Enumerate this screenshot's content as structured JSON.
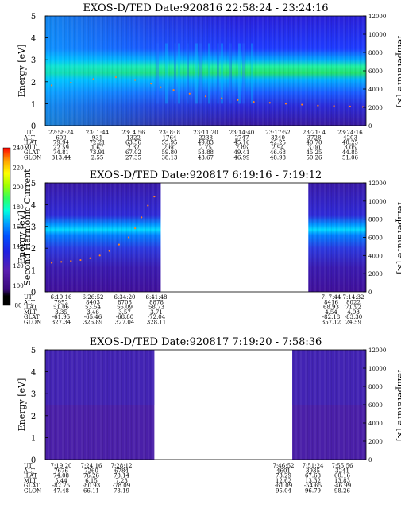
{
  "colorbar": {
    "label": "Second Harmonic Current",
    "ticks": [
      "80",
      "100",
      "120",
      "140",
      "160",
      "180",
      "200",
      "220",
      "240"
    ],
    "colors": [
      "#000000",
      "#3a0a7a",
      "#5a1fb0",
      "#2020e0",
      "#0050ff",
      "#00a0ff",
      "#00ffe0",
      "#30ff60",
      "#a0ff00",
      "#ffff00",
      "#ffa000",
      "#ff2000",
      "#ff0000"
    ]
  },
  "chart_data": [
    {
      "type": "heatmap",
      "title": "EXOS-D/TED   Date:920816  22:58:24 - 23:24:16",
      "ylabel": "Energy [eV]",
      "y2label": "Temperature [K]",
      "ylim": [
        0,
        5
      ],
      "y2lim": [
        0,
        12000
      ],
      "yticks": [
        "0",
        "1",
        "2",
        "3",
        "4",
        "5"
      ],
      "y2ticks": [
        "0",
        "2000",
        "4000",
        "6000",
        "8000",
        "10000",
        "12000"
      ],
      "segments": [
        [
          0,
          1
        ]
      ],
      "series": [
        {
          "name": "temperature",
          "x": [
            0.02,
            0.08,
            0.15,
            0.22,
            0.28,
            0.33,
            0.36,
            0.4,
            0.45,
            0.5,
            0.55,
            0.6,
            0.65,
            0.7,
            0.75,
            0.8,
            0.85,
            0.9,
            0.95,
            0.99
          ],
          "values": [
            4400,
            4700,
            5100,
            5300,
            5000,
            4600,
            4200,
            3900,
            3500,
            3200,
            3000,
            2800,
            2600,
            2500,
            2400,
            2300,
            2200,
            2150,
            2100,
            2050
          ]
        }
      ],
      "rows": [
        {
          "label": "UT",
          "values": [
            "22:58:24",
            "23: 1:44",
            "23: 4:56",
            "23: 8: 8",
            "23:11:20",
            "23:14:40",
            "23:17:52",
            "23:21: 4",
            "23:24:16"
          ]
        },
        {
          "label": "ALT",
          "values": [
            "602",
            "931",
            "1322",
            "1764",
            "2238",
            "2747",
            "3240",
            "3728",
            "4203"
          ]
        },
        {
          "label": "ILAT",
          "values": [
            "79.94",
            "72.21",
            "63.56",
            "55.95",
            "49.83",
            "45.16",
            "42.25",
            "40.70",
            "40.25"
          ]
        },
        {
          "label": "MLT",
          "values": [
            "22.59",
            "1.67",
            "2.32",
            "2.60",
            "2.75",
            "2.86",
            "2.94",
            "3.00",
            "3.05"
          ]
        },
        {
          "label": "GLAT",
          "values": [
            "74.81",
            "73.91",
            "67.02",
            "59.80",
            "53.88",
            "49.41",
            "46.68",
            "45.25",
            "44.85"
          ]
        },
        {
          "label": "GLON",
          "values": [
            "313.44",
            "2.55",
            "27.35",
            "38.13",
            "43.67",
            "46.99",
            "48.98",
            "50.26",
            "51.06"
          ]
        }
      ]
    },
    {
      "type": "heatmap",
      "title": "EXOS-D/TED   Date:920817  6:19:16 - 7:19:12",
      "ylabel": "Energy [eV]",
      "y2label": "Temperature [K]",
      "ylim": [
        0,
        5
      ],
      "y2lim": [
        0,
        12000
      ],
      "yticks": [
        "0",
        "1",
        "2",
        "3",
        "4",
        "5"
      ],
      "y2ticks": [
        "0",
        "2000",
        "4000",
        "6000",
        "8000",
        "10000",
        "12000"
      ],
      "segments": [
        [
          0,
          0.36
        ],
        [
          0.82,
          1
        ]
      ],
      "series": [
        {
          "name": "temperature",
          "x": [
            0.02,
            0.05,
            0.08,
            0.11,
            0.14,
            0.17,
            0.2,
            0.23,
            0.26,
            0.28,
            0.3,
            0.32,
            0.34
          ],
          "values": [
            3200,
            3300,
            3400,
            3500,
            3700,
            4000,
            4500,
            5200,
            6000,
            7000,
            8200,
            9500,
            10500
          ]
        }
      ],
      "rows": [
        {
          "label": "UT",
          "values": [
            "6:19:16",
            "6:26:52",
            "6:34:20",
            "6:41:48",
            "7: 7:44",
            "7:14:32"
          ]
        },
        {
          "label": "ALT",
          "values": [
            "7952",
            "8403",
            "8708",
            "8878",
            "8416",
            "8022"
          ]
        },
        {
          "label": "ILAT",
          "values": [
            "51.06",
            "53.54",
            "56.09",
            "58.73",
            "68.93",
            "71.92"
          ]
        },
        {
          "label": "MLT",
          "values": [
            "3.35",
            "3.46",
            "3.57",
            "3.71",
            "4.54",
            "4.98"
          ]
        },
        {
          "label": "GLAT",
          "values": [
            "-61.95",
            "-65.46",
            "-68.80",
            "-72.04",
            "-82.18",
            "-83.30"
          ]
        },
        {
          "label": "GLON",
          "values": [
            "327.34",
            "326.89",
            "327.04",
            "328.11",
            "357.12",
            "24.59"
          ]
        }
      ]
    },
    {
      "type": "heatmap",
      "title": "EXOS-D/TED   Date:920817  7:19:20 - 7:58:36",
      "ylabel": "Energy [eV]",
      "y2label": "Temperature [K]",
      "ylim": [
        0,
        5
      ],
      "y2lim": [
        0,
        12000
      ],
      "yticks": [
        "0",
        "1",
        "2",
        "3",
        "4",
        "5"
      ],
      "y2ticks": [
        "0",
        "2000",
        "4000",
        "6000",
        "8000",
        "10000",
        "12000"
      ],
      "segments": [
        [
          0,
          0.34
        ],
        [
          0.77,
          1
        ]
      ],
      "series": [],
      "rows": [
        {
          "label": "UT",
          "values": [
            "7:19:20",
            "7:24:16",
            "7:28:12",
            "7:46:52",
            "7:51:24",
            "7:55:56"
          ]
        },
        {
          "label": "ALT",
          "values": [
            "7676",
            "7260",
            "6784",
            "4601",
            "3935",
            "3241"
          ]
        },
        {
          "label": "ILAT",
          "values": [
            "74.08",
            "76.26",
            "78.14",
            "73.29",
            "67.68",
            "60.16"
          ]
        },
        {
          "label": "MLT",
          "values": [
            "5.44",
            "6.15",
            "7.23",
            "12.62",
            "13.32",
            "13.83"
          ]
        },
        {
          "label": "GLAT",
          "values": [
            "-82.75",
            "-80.93",
            "-78.09",
            "-61.09",
            "-54.65",
            "-46.99"
          ]
        },
        {
          "label": "GLON",
          "values": [
            "47.48",
            "66.11",
            "78.19",
            "95.04",
            "96.79",
            "98.26"
          ]
        }
      ]
    }
  ]
}
